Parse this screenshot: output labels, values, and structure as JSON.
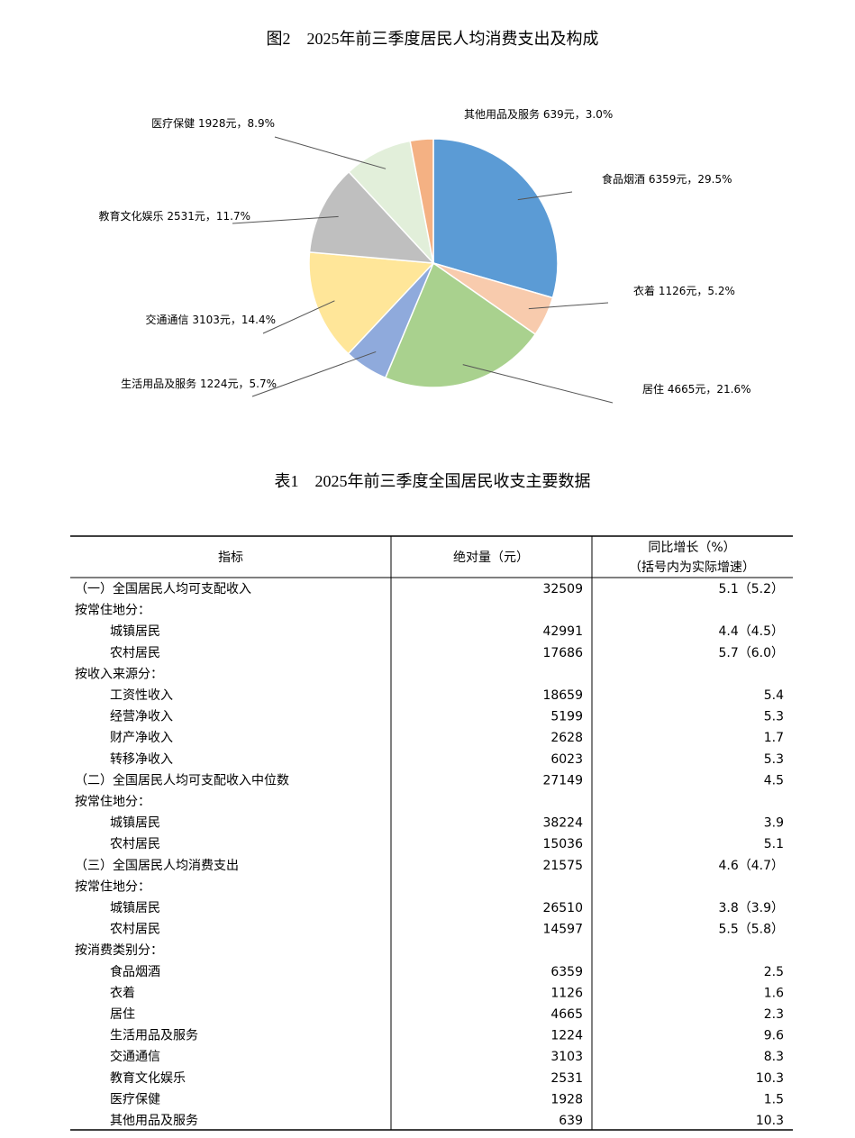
{
  "chart_data": {
    "type": "pie",
    "title": "图2　2025年前三季度居民人均消费支出及构成",
    "categories": [
      "食品烟酒",
      "衣着",
      "居住",
      "生活用品及服务",
      "交通通信",
      "教育文化娱乐",
      "医疗保健",
      "其他用品及服务"
    ],
    "values": [
      29.5,
      5.2,
      21.6,
      5.7,
      14.4,
      11.7,
      8.9,
      3.0
    ],
    "value_labels": [
      "6359元，29.5%",
      "1126元，5.2%",
      "4665元，21.6%",
      "1224元，5.7%",
      "3103元，14.4%",
      "2531元，11.7%",
      "1928元，8.9%",
      "639元，3.0%"
    ],
    "colors": [
      "#5b9bd5",
      "#f8cbad",
      "#a9d18e",
      "#8faadc",
      "#ffe699",
      "#bfbfbf",
      "#e2efda",
      "#f4b183"
    ]
  },
  "table": {
    "title": "表1　2025年前三季度全国居民收支主要数据",
    "header": [
      "指标",
      "绝对量（元）"
    ],
    "header_growth": [
      "同比增长（%）",
      "（括号内为实际增速）"
    ],
    "rows": [
      [
        "（一）全国居民人均可支配收入",
        32509,
        "5.1（5.2）"
      ],
      [
        "按常住地分：",
        null,
        null
      ],
      [
        "城镇居民",
        42991,
        "4.4（4.5）"
      ],
      [
        "农村居民",
        17686,
        "5.7（6.0）"
      ],
      [
        "按收入来源分：",
        null,
        null
      ],
      [
        "工资性收入",
        18659,
        5.4
      ],
      [
        "经营净收入",
        5199,
        5.3
      ],
      [
        "财产净收入",
        2628,
        1.7
      ],
      [
        "转移净收入",
        6023,
        5.3
      ],
      [
        "（二）全国居民人均可支配收入中位数",
        27149,
        4.5
      ],
      [
        "按常住地分：",
        null,
        null
      ],
      [
        "城镇居民",
        38224,
        3.9
      ],
      [
        "农村居民",
        15036,
        5.1
      ],
      [
        "（三）全国居民人均消费支出",
        21575,
        "4.6（4.7）"
      ],
      [
        "按常住地分：",
        null,
        null
      ],
      [
        "城镇居民",
        26510,
        "3.8（3.9）"
      ],
      [
        "农村居民",
        14597,
        "5.5（5.8）"
      ],
      [
        "按消费类别分：",
        null,
        null
      ],
      [
        "食品烟酒",
        6359,
        2.5
      ],
      [
        "衣着",
        1126,
        1.6
      ],
      [
        "居住",
        4665,
        2.3
      ],
      [
        "生活用品及服务",
        1224,
        9.6
      ],
      [
        "交通通信",
        3103,
        8.3
      ],
      [
        "教育文化娱乐",
        2531,
        10.3
      ],
      [
        "医疗保健",
        1928,
        1.5
      ],
      [
        "其他用品及服务",
        639,
        10.3
      ]
    ]
  }
}
